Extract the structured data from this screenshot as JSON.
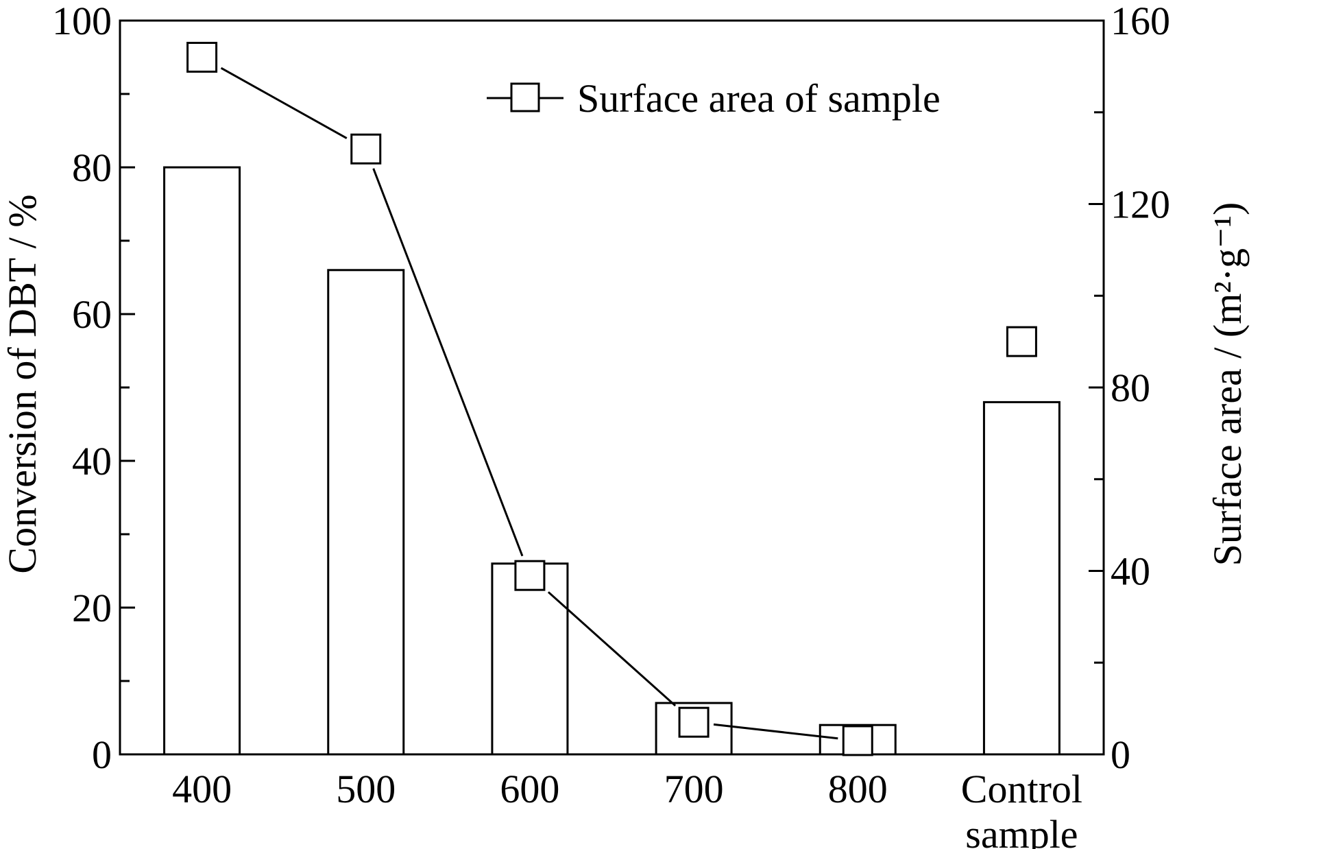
{
  "chart_data": {
    "type": "bar",
    "categories": [
      "400",
      "500",
      "600",
      "700",
      "800",
      "Control\nsample"
    ],
    "series": [
      {
        "type": "bar",
        "axis": "left",
        "values": [
          80,
          66,
          26,
          7,
          4,
          48
        ]
      },
      {
        "name": "Surface area of sample",
        "type": "line",
        "axis": "right",
        "marker": "open-square",
        "values": [
          152,
          132,
          39,
          7,
          3,
          90
        ],
        "connected": [
          true,
          true,
          true,
          true,
          true,
          false
        ]
      }
    ],
    "ylabel": "Conversion of DBT / %",
    "ylabel_right": "Surface area / (m²·g⁻¹)",
    "ylim": [
      0,
      100
    ],
    "ylim_right": [
      0,
      160
    ],
    "yticks": [
      "0",
      "20",
      "40",
      "60",
      "80",
      "100"
    ],
    "yticks_right": [
      "0",
      "40",
      "80",
      "120",
      "160"
    ],
    "legend": "top-right",
    "grid": false
  }
}
